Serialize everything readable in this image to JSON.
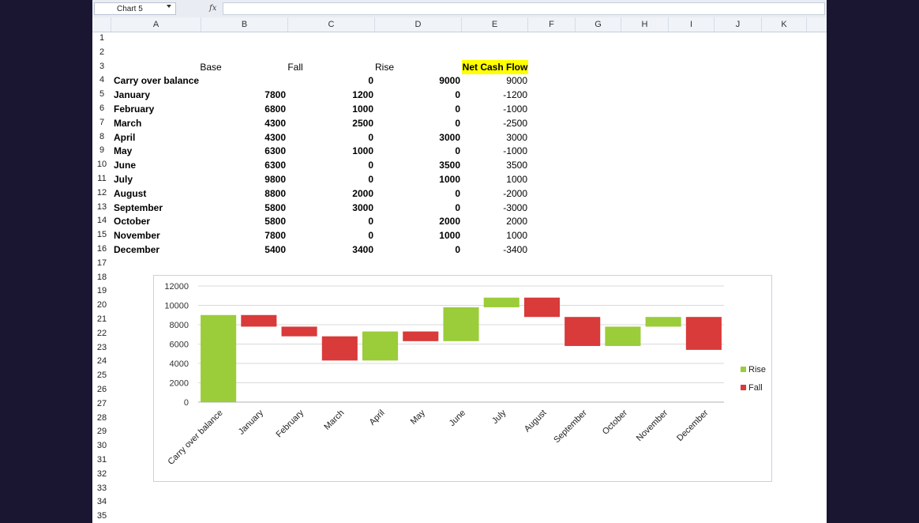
{
  "name_box": "Chart 5",
  "formula_icon": "fx",
  "columns": [
    "A",
    "B",
    "C",
    "D",
    "E",
    "F",
    "G",
    "H",
    "I",
    "J",
    "K"
  ],
  "rows": [
    "1",
    "2",
    "3",
    "4",
    "5",
    "6",
    "7",
    "8",
    "9",
    "10",
    "11",
    "12",
    "13",
    "14",
    "15",
    "16",
    "17",
    "18",
    "19",
    "20",
    "21",
    "22",
    "23",
    "24",
    "25",
    "26",
    "27",
    "28",
    "29",
    "30",
    "31",
    "32",
    "33",
    "34",
    "35"
  ],
  "headers": {
    "base": "Base",
    "fall": "Fall",
    "rise": "Rise",
    "net": "Net Cash Flow"
  },
  "table": [
    {
      "label": "Carry over balance",
      "base": "",
      "fall": "0",
      "rise": "9000",
      "net": "9000"
    },
    {
      "label": "January",
      "base": "7800",
      "fall": "1200",
      "rise": "0",
      "net": "-1200"
    },
    {
      "label": "February",
      "base": "6800",
      "fall": "1000",
      "rise": "0",
      "net": "-1000"
    },
    {
      "label": "March",
      "base": "4300",
      "fall": "2500",
      "rise": "0",
      "net": "-2500"
    },
    {
      "label": "April",
      "base": "4300",
      "fall": "0",
      "rise": "3000",
      "net": "3000"
    },
    {
      "label": "May",
      "base": "6300",
      "fall": "1000",
      "rise": "0",
      "net": "-1000"
    },
    {
      "label": "June",
      "base": "6300",
      "fall": "0",
      "rise": "3500",
      "net": "3500"
    },
    {
      "label": "July",
      "base": "9800",
      "fall": "0",
      "rise": "1000",
      "net": "1000"
    },
    {
      "label": "August",
      "base": "8800",
      "fall": "2000",
      "rise": "0",
      "net": "-2000"
    },
    {
      "label": "September",
      "base": "5800",
      "fall": "3000",
      "rise": "0",
      "net": "-3000"
    },
    {
      "label": "October",
      "base": "5800",
      "fall": "0",
      "rise": "2000",
      "net": "2000"
    },
    {
      "label": "November",
      "base": "7800",
      "fall": "0",
      "rise": "1000",
      "net": "1000"
    },
    {
      "label": "December",
      "base": "5400",
      "fall": "3400",
      "rise": "0",
      "net": "-3400"
    }
  ],
  "colors": {
    "rise": "#9bcc3a",
    "fall": "#d93a3a",
    "highlight": "#ffff00"
  },
  "chart_data": {
    "type": "bar",
    "stacked": true,
    "categories": [
      "Carry over balance",
      "January",
      "February",
      "March",
      "April",
      "May",
      "June",
      "July",
      "August",
      "September",
      "October",
      "November",
      "December"
    ],
    "series": [
      {
        "name": "Base",
        "values": [
          0,
          7800,
          6800,
          4300,
          4300,
          6300,
          6300,
          9800,
          8800,
          5800,
          5800,
          7800,
          5400
        ],
        "visible": false
      },
      {
        "name": "Fall",
        "values": [
          0,
          1200,
          1000,
          2500,
          0,
          1000,
          0,
          0,
          2000,
          3000,
          0,
          0,
          3400
        ]
      },
      {
        "name": "Rise",
        "values": [
          9000,
          0,
          0,
          0,
          3000,
          0,
          3500,
          1000,
          0,
          0,
          2000,
          1000,
          0
        ]
      }
    ],
    "legend_entries": [
      "Rise",
      "Fall"
    ],
    "ylim": [
      0,
      12000
    ],
    "yticks": [
      "0",
      "2000",
      "4000",
      "6000",
      "8000",
      "10000",
      "12000"
    ],
    "grid": true,
    "legend": "right"
  }
}
